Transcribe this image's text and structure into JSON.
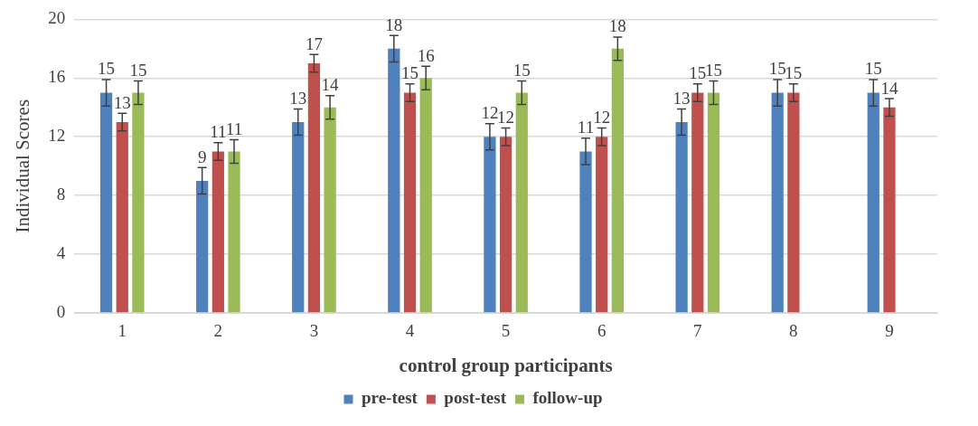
{
  "chart_data": {
    "type": "bar",
    "xlabel": "control group participants",
    "ylabel": "Individual Scores",
    "categories": [
      "1",
      "2",
      "3",
      "4",
      "5",
      "6",
      "7",
      "8",
      "9"
    ],
    "series": [
      {
        "name": "pre-test",
        "color": "#4f81bd",
        "values": [
          15,
          9,
          13,
          18,
          12,
          11,
          13,
          15,
          15
        ],
        "errors": [
          0.9,
          0.9,
          0.9,
          0.9,
          0.9,
          0.9,
          0.9,
          0.9,
          0.9
        ]
      },
      {
        "name": "post-test",
        "color": "#c0504d",
        "values": [
          13,
          11,
          17,
          15,
          12,
          12,
          15,
          15,
          14
        ],
        "errors": [
          0.6,
          0.6,
          0.6,
          0.6,
          0.6,
          0.6,
          0.6,
          0.6,
          0.6
        ]
      },
      {
        "name": "follow-up",
        "color": "#9bbb59",
        "values": [
          15,
          11,
          14,
          16,
          15,
          18,
          15,
          null,
          null
        ],
        "errors": [
          0.8,
          0.8,
          0.8,
          0.8,
          0.8,
          0.8,
          0.8,
          null,
          null
        ]
      }
    ],
    "ylim": [
      0,
      20
    ],
    "yticks": [
      0,
      4,
      8,
      12,
      16,
      20
    ],
    "grid": "y",
    "legend": "bottom",
    "data_labels": true
  }
}
